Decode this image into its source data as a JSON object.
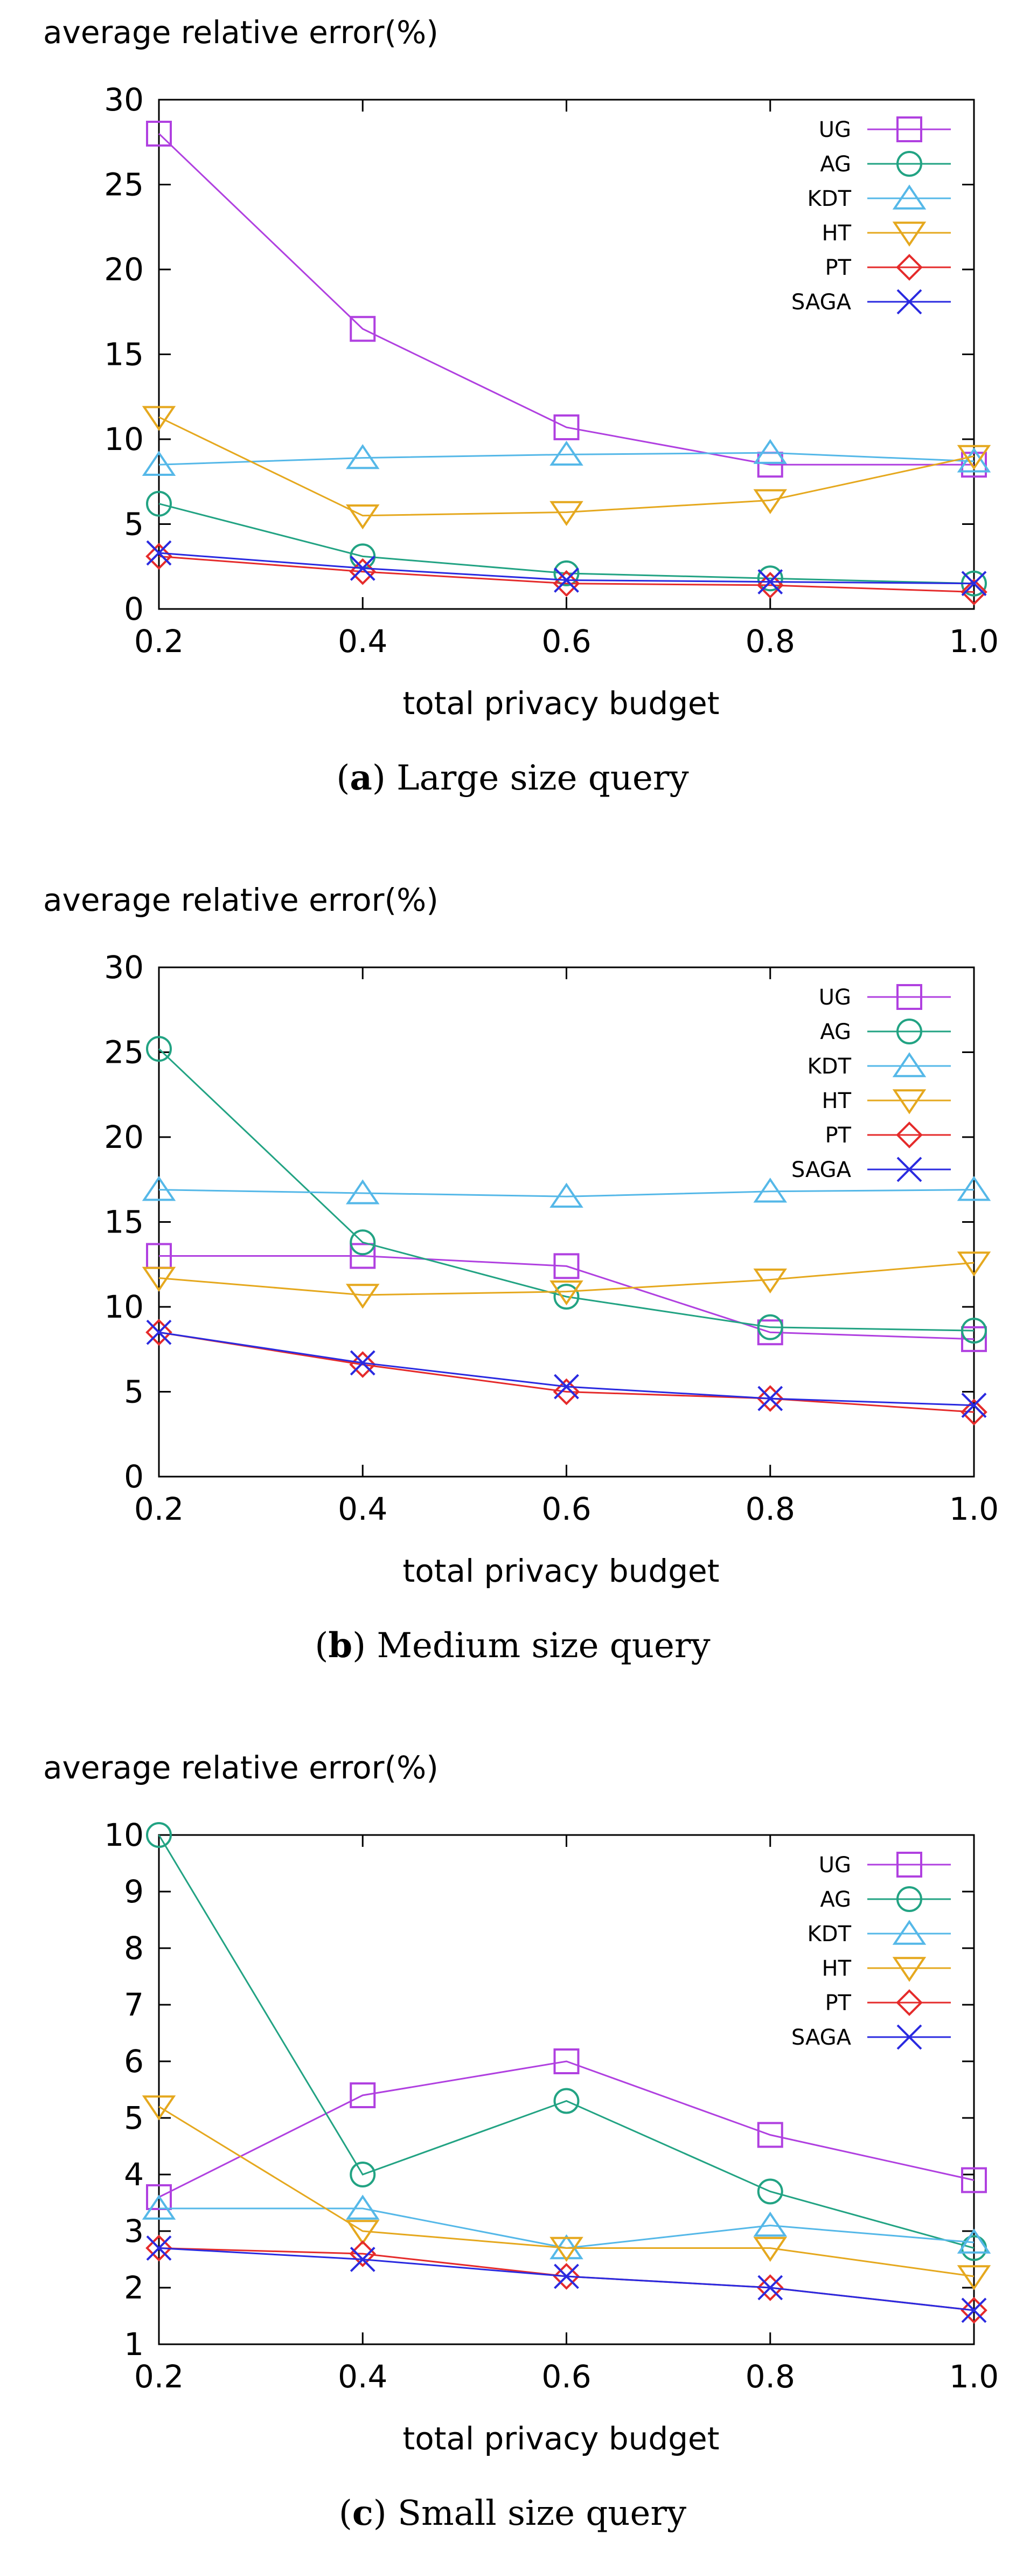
{
  "chart_data": [
    {
      "type": "line",
      "title": "",
      "ylabel": "average relative error(%)",
      "xlabel": "total privacy budget",
      "caption_letter": "a",
      "caption_text": "Large size query",
      "x": [
        0.2,
        0.4,
        0.6,
        0.8,
        1.0
      ],
      "x_tick_labels": [
        "0.2",
        "0.4",
        "0.6",
        "0.8",
        "1.0"
      ],
      "xlim": [
        0.2,
        1.0
      ],
      "ylim": [
        0,
        30
      ],
      "y_ticks": [
        0,
        5,
        10,
        15,
        20,
        25,
        30
      ],
      "y_tick_labels": [
        "0",
        "5",
        "10",
        "15",
        "20",
        "25",
        "30"
      ],
      "grid": false,
      "legend_position": "top-right",
      "series": [
        {
          "name": "UG",
          "color": "#b040e0",
          "marker": "square",
          "values": [
            28,
            16.5,
            10.7,
            8.5,
            8.5
          ]
        },
        {
          "name": "AG",
          "color": "#22a383",
          "marker": "circle",
          "values": [
            6.2,
            3.1,
            2.1,
            1.8,
            1.5
          ]
        },
        {
          "name": "KDT",
          "color": "#55b8e8",
          "marker": "triangle-up",
          "values": [
            8.5,
            8.9,
            9.1,
            9.2,
            8.7
          ]
        },
        {
          "name": "HT",
          "color": "#e5a81e",
          "marker": "triangle-down",
          "values": [
            11.3,
            5.5,
            5.7,
            6.4,
            9.0
          ]
        },
        {
          "name": "PT",
          "color": "#e52b2b",
          "marker": "diamond",
          "values": [
            3.1,
            2.2,
            1.5,
            1.4,
            1.0
          ]
        },
        {
          "name": "SAGA",
          "color": "#2a2ae0",
          "marker": "x",
          "values": [
            3.3,
            2.4,
            1.7,
            1.6,
            1.5
          ]
        }
      ]
    },
    {
      "type": "line",
      "title": "",
      "ylabel": "average relative error(%)",
      "xlabel": "total privacy budget",
      "caption_letter": "b",
      "caption_text": "Medium size query",
      "x": [
        0.2,
        0.4,
        0.6,
        0.8,
        1.0
      ],
      "x_tick_labels": [
        "0.2",
        "0.4",
        "0.6",
        "0.8",
        "1.0"
      ],
      "xlim": [
        0.2,
        1.0
      ],
      "ylim": [
        0,
        30
      ],
      "y_ticks": [
        0,
        5,
        10,
        15,
        20,
        25,
        30
      ],
      "y_tick_labels": [
        "0",
        "5",
        "10",
        "15",
        "20",
        "25",
        "30"
      ],
      "grid": false,
      "legend_position": "top-right",
      "series": [
        {
          "name": "UG",
          "color": "#b040e0",
          "marker": "square",
          "values": [
            13.0,
            13.0,
            12.4,
            8.5,
            8.1
          ]
        },
        {
          "name": "AG",
          "color": "#22a383",
          "marker": "circle",
          "values": [
            25.2,
            13.8,
            10.6,
            8.8,
            8.6
          ]
        },
        {
          "name": "KDT",
          "color": "#55b8e8",
          "marker": "triangle-up",
          "values": [
            16.9,
            16.7,
            16.5,
            16.8,
            16.9
          ]
        },
        {
          "name": "HT",
          "color": "#e5a81e",
          "marker": "triangle-down",
          "values": [
            11.7,
            10.7,
            10.9,
            11.6,
            12.6
          ]
        },
        {
          "name": "PT",
          "color": "#e52b2b",
          "marker": "diamond",
          "values": [
            8.5,
            6.6,
            5.0,
            4.6,
            3.8
          ]
        },
        {
          "name": "SAGA",
          "color": "#2a2ae0",
          "marker": "x",
          "values": [
            8.5,
            6.7,
            5.3,
            4.6,
            4.2
          ]
        }
      ]
    },
    {
      "type": "line",
      "title": "",
      "ylabel": "average relative error(%)",
      "xlabel": "total privacy budget",
      "caption_letter": "c",
      "caption_text": "Small size query",
      "x": [
        0.2,
        0.4,
        0.6,
        0.8,
        1.0
      ],
      "x_tick_labels": [
        "0.2",
        "0.4",
        "0.6",
        "0.8",
        "1.0"
      ],
      "xlim": [
        0.2,
        1.0
      ],
      "ylim": [
        1,
        10
      ],
      "y_ticks": [
        1,
        2,
        3,
        4,
        5,
        6,
        7,
        8,
        9,
        10
      ],
      "y_tick_labels": [
        "1",
        "2",
        "3",
        "4",
        "5",
        "6",
        "7",
        "8",
        "9",
        "10"
      ],
      "grid": false,
      "legend_position": "top-right",
      "series": [
        {
          "name": "UG",
          "color": "#b040e0",
          "marker": "square",
          "values": [
            3.6,
            5.4,
            6.0,
            4.7,
            3.9
          ]
        },
        {
          "name": "AG",
          "color": "#22a383",
          "marker": "circle",
          "values": [
            10.0,
            4.0,
            5.3,
            3.7,
            2.7
          ]
        },
        {
          "name": "KDT",
          "color": "#55b8e8",
          "marker": "triangle-up",
          "values": [
            3.4,
            3.4,
            2.7,
            3.1,
            2.8
          ]
        },
        {
          "name": "HT",
          "color": "#e5a81e",
          "marker": "triangle-down",
          "values": [
            5.2,
            3.0,
            2.7,
            2.7,
            2.2
          ]
        },
        {
          "name": "PT",
          "color": "#e52b2b",
          "marker": "diamond",
          "values": [
            2.7,
            2.6,
            2.2,
            2.0,
            1.6
          ]
        },
        {
          "name": "SAGA",
          "color": "#2a2ae0",
          "marker": "x",
          "values": [
            2.7,
            2.5,
            2.2,
            2.0,
            1.6
          ]
        }
      ]
    }
  ]
}
